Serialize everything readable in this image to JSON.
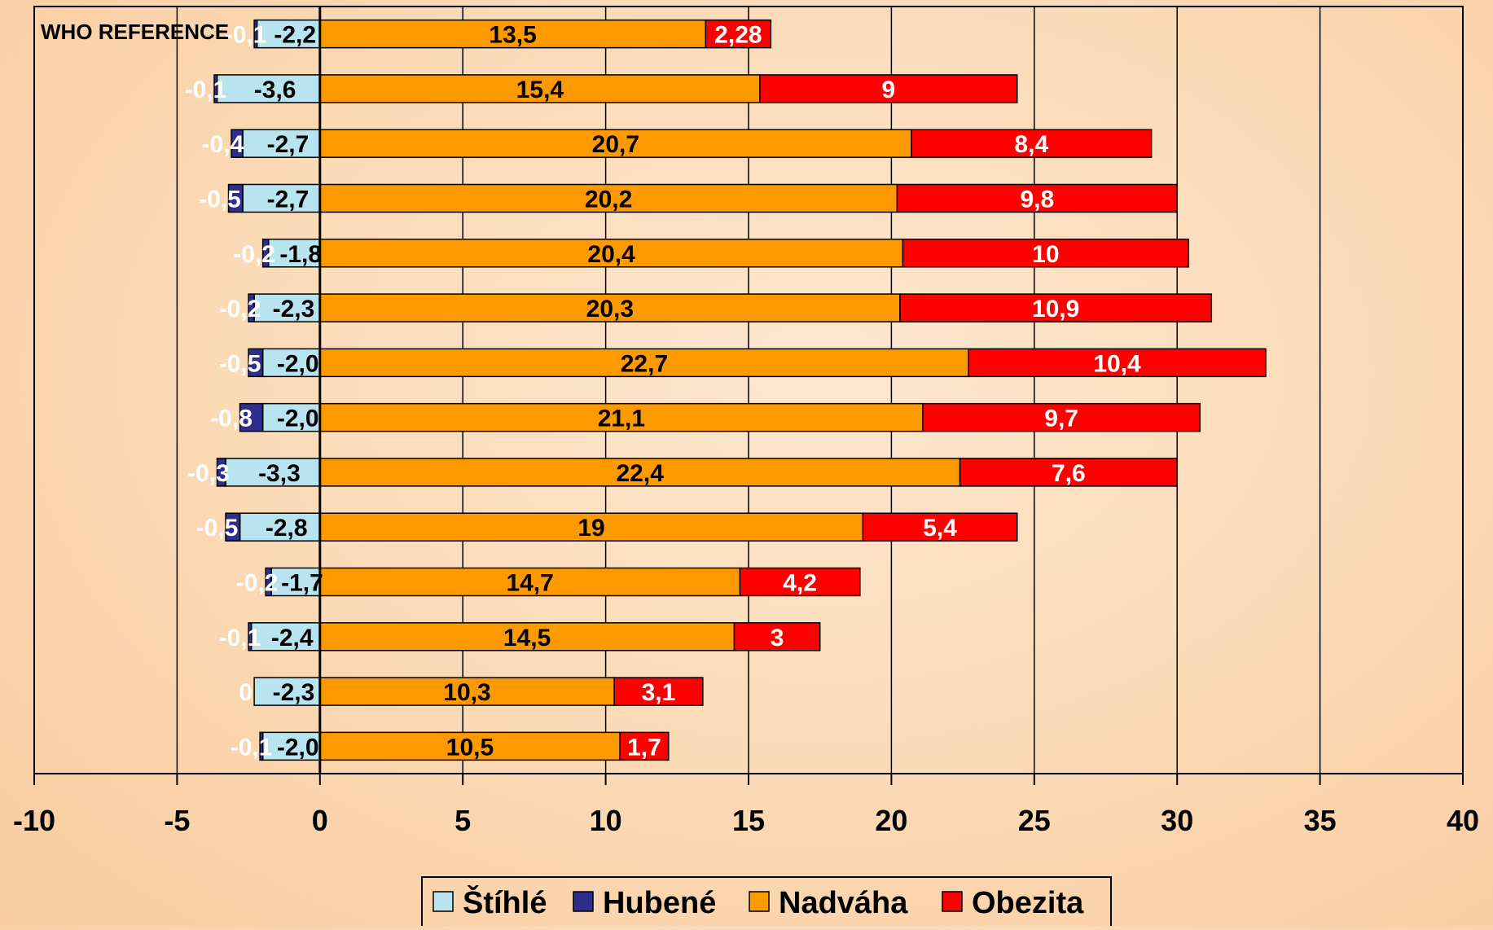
{
  "chart_data": {
    "type": "bar",
    "orientation": "horizontal",
    "stacked": true,
    "annotation": "WHO REFERENCE",
    "xlim": [
      -10,
      40
    ],
    "x_ticks": [
      -10,
      -5,
      0,
      5,
      10,
      15,
      20,
      25,
      30,
      35,
      40
    ],
    "grid": "vertical",
    "legend_position": "bottom",
    "colors": {
      "Štíhlé": "#b8e4ef",
      "Hubené": "#2e2e8f",
      "Nadváha": "#ff9900",
      "Obezita": "#ff0000"
    },
    "series": [
      {
        "name": "Štíhlé",
        "values": [
          -2.2,
          -3.6,
          -2.7,
          -2.7,
          -1.8,
          -2.3,
          -2.0,
          -2.0,
          -3.3,
          -2.8,
          -1.7,
          -2.4,
          -2.3,
          -2.0
        ],
        "labels": [
          "-2,2",
          "-3,6",
          "-2,7",
          "-2,7",
          "-1,8",
          "-2,3",
          "-2,0",
          "-2,0",
          "-3,3",
          "-2,8",
          "-1,7",
          "-2,4",
          "-2,3",
          "-2,0"
        ]
      },
      {
        "name": "Hubené",
        "values": [
          -0.1,
          -0.1,
          -0.4,
          -0.5,
          -0.2,
          -0.2,
          -0.5,
          -0.8,
          -0.3,
          -0.5,
          -0.2,
          -0.1,
          0,
          -0.1
        ],
        "labels": [
          "-0,1",
          "-0,1",
          "-0,4",
          "-0,5",
          "-0,2",
          "-0,2",
          "-0,5",
          "-0,8",
          "-0,3",
          "-0,5",
          "-0,2",
          "-0,1",
          "0",
          "-0,1"
        ]
      },
      {
        "name": "Nadváha",
        "values": [
          13.5,
          15.4,
          20.7,
          20.2,
          20.4,
          20.3,
          22.7,
          21.1,
          22.4,
          19,
          14.7,
          14.5,
          10.3,
          10.5
        ],
        "labels": [
          "13,5",
          "15,4",
          "20,7",
          "20,2",
          "20,4",
          "20,3",
          "22,7",
          "21,1",
          "22,4",
          "19",
          "14,7",
          "14,5",
          "10,3",
          "10,5"
        ]
      },
      {
        "name": "Obezita",
        "values": [
          2.28,
          9,
          8.4,
          9.8,
          10,
          10.9,
          10.4,
          9.7,
          7.6,
          5.4,
          4.2,
          3,
          3.1,
          1.7
        ],
        "labels": [
          "2,28",
          "9",
          "8,4",
          "9,8",
          "10",
          "10,9",
          "10,4",
          "9,7",
          "7,6",
          "5,4",
          "4,2",
          "3",
          "3,1",
          "1,7"
        ]
      }
    ]
  }
}
